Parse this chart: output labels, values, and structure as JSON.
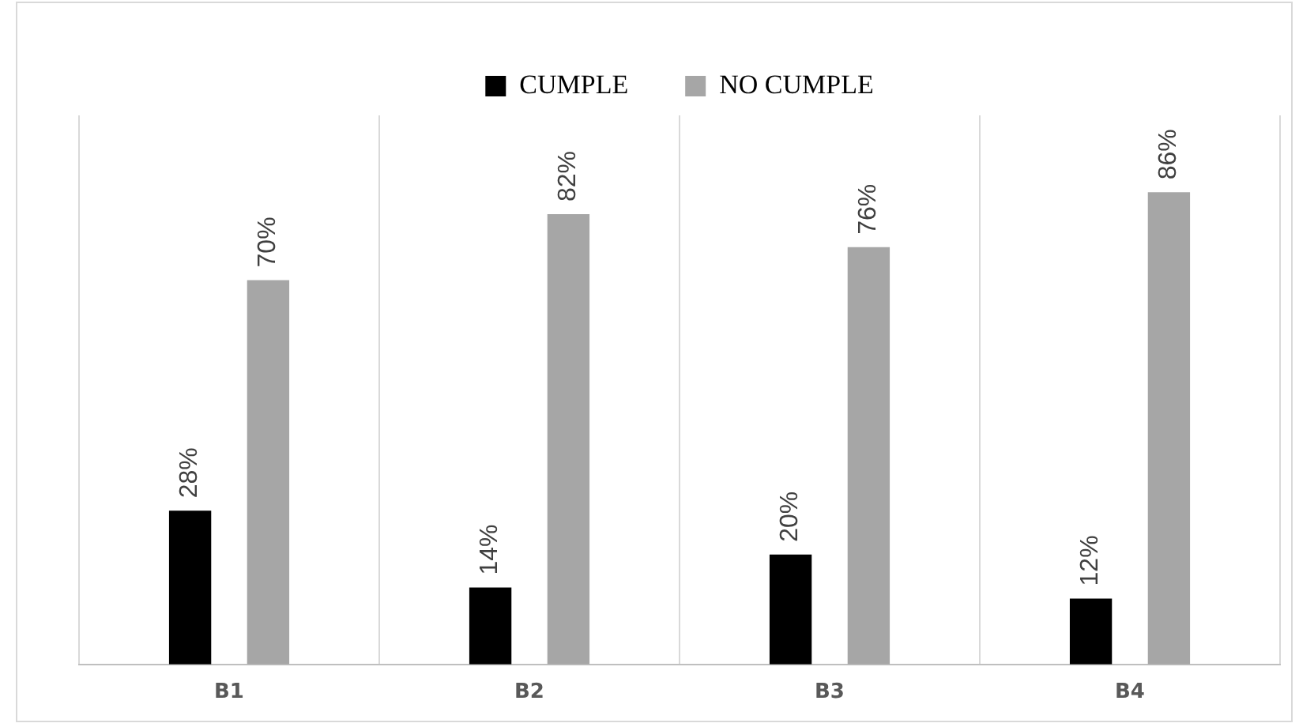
{
  "chart_data": {
    "type": "bar",
    "categories": [
      "B1",
      "B2",
      "B3",
      "B4"
    ],
    "series": [
      {
        "name": "CUMPLE",
        "color": "#000000",
        "values": [
          28,
          14,
          20,
          12
        ],
        "value_labels": [
          "28%",
          "14%",
          "20%",
          "12%"
        ]
      },
      {
        "name": "NO CUMPLE",
        "color": "#a6a6a6",
        "values": [
          70,
          82,
          76,
          86
        ],
        "value_labels": [
          "70%",
          "82%",
          "76%",
          "86%"
        ]
      }
    ],
    "ylim": [
      0,
      100
    ],
    "grid": "x",
    "legend": "top"
  }
}
